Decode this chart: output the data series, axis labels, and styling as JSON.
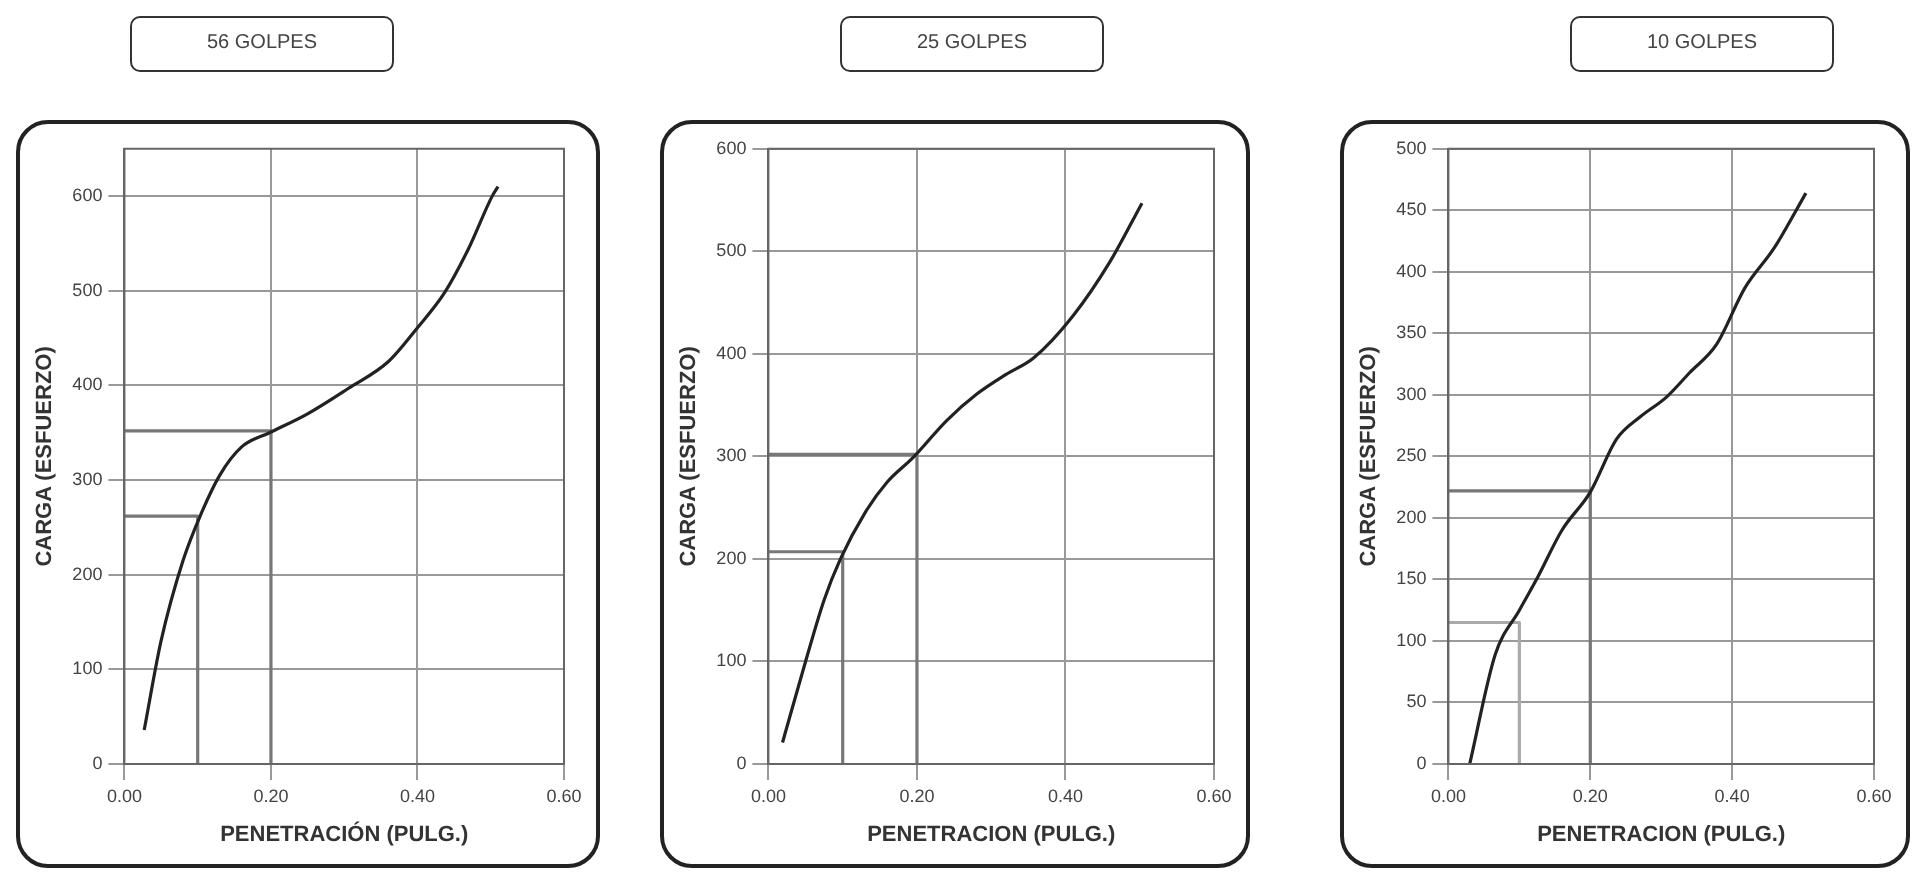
{
  "chart_data": [
    {
      "type": "line",
      "title": "56 GOLPES",
      "xlabel": "PENETRACIÓN (PULG.)",
      "ylabel": "CARGA (ESFUERZO)",
      "series": [
        {
          "color": "#222222",
          "x": [
            0.027,
            0.05,
            0.08,
            0.105,
            0.13,
            0.16,
            0.198,
            0.25,
            0.306,
            0.36,
            0.4,
            0.437,
            0.47,
            0.502,
            0.51
          ],
          "values": [
            36,
            130,
            215,
            265,
            305,
            335,
            350,
            370,
            397,
            425,
            461,
            498,
            545,
            600,
            610
          ]
        },
        {
          "color": "#777777",
          "x": [
            0,
            0.1,
            0.1
          ],
          "values": [
            262,
            262,
            0
          ]
        },
        {
          "color": "#777777",
          "x": [
            0,
            0.2,
            0.2
          ],
          "values": [
            352,
            352,
            0
          ]
        }
      ],
      "xlim": [
        0,
        0.6
      ],
      "xticks": [
        {
          "value": 0,
          "label": "0.00"
        },
        {
          "value": 0.2,
          "label": "0.20"
        },
        {
          "value": 0.4,
          "label": "0.40"
        },
        {
          "value": 0.6,
          "label": "0.60"
        }
      ],
      "ylim": [
        0,
        650
      ],
      "yticks": [
        0,
        100,
        200,
        300,
        400,
        500,
        600
      ],
      "grid": true
    },
    {
      "type": "line",
      "title": "25 GOLPES",
      "xlabel": "PENETRACION (PULG.)",
      "ylabel": "CARGA (ESFUERZO)",
      "series": [
        {
          "color": "#222222",
          "x": [
            0.019,
            0.05,
            0.075,
            0.097,
            0.13,
            0.16,
            0.195,
            0.24,
            0.281,
            0.32,
            0.357,
            0.41,
            0.46,
            0.503
          ],
          "values": [
            21,
            100,
            160,
            200,
            245,
            275,
            299,
            335,
            361,
            380,
            396,
            437,
            490,
            547
          ]
        },
        {
          "color": "#777777",
          "x": [
            0,
            0.1,
            0.1
          ],
          "values": [
            207,
            207,
            0
          ]
        },
        {
          "color": "#777777",
          "x": [
            0,
            0.2,
            0.2
          ],
          "values": [
            302,
            302,
            0
          ]
        }
      ],
      "xlim": [
        0,
        0.6
      ],
      "xticks": [
        {
          "value": 0,
          "label": "0.00"
        },
        {
          "value": 0.2,
          "label": "0.20"
        },
        {
          "value": 0.4,
          "label": "0.40"
        },
        {
          "value": 0.6,
          "label": "0.60"
        }
      ],
      "ylim": [
        0,
        600
      ],
      "yticks": [
        0,
        100,
        200,
        300,
        400,
        500,
        600
      ],
      "grid": true
    },
    {
      "type": "line",
      "title": "10 GOLPES",
      "xlabel": "PENETRACION (PULG.)",
      "ylabel": "CARGA (ESFUERZO)",
      "series": [
        {
          "color": "#222222",
          "x": [
            0.03,
            0.066,
            0.1,
            0.126,
            0.16,
            0.2,
            0.237,
            0.27,
            0.307,
            0.34,
            0.378,
            0.418,
            0.46,
            0.504
          ],
          "values": [
            0,
            89,
            125,
            152,
            190,
            221,
            264,
            282,
            298,
            318,
            341,
            387,
            420,
            464
          ]
        },
        {
          "color": "#aaaaaa",
          "x": [
            0,
            0.1,
            0.1
          ],
          "values": [
            115,
            115,
            0
          ]
        },
        {
          "color": "#777777",
          "x": [
            0,
            0.2,
            0.2
          ],
          "values": [
            222,
            222,
            0
          ]
        }
      ],
      "xlim": [
        0,
        0.6
      ],
      "xticks": [
        {
          "value": 0,
          "label": "0.00"
        },
        {
          "value": 0.2,
          "label": "0.20"
        },
        {
          "value": 0.4,
          "label": "0.40"
        },
        {
          "value": 0.6,
          "label": "0.60"
        }
      ],
      "ylim": [
        0,
        500
      ],
      "yticks": [
        0,
        50,
        100,
        150,
        200,
        250,
        300,
        350,
        400,
        450,
        500
      ],
      "grid": true
    }
  ]
}
